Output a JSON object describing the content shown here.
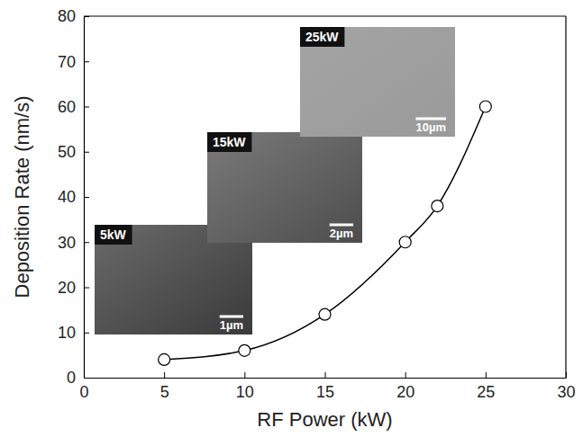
{
  "chart_data": {
    "type": "line",
    "x_label": "RF Power (kW)",
    "y_label": "Deposition Rate (nm/s)",
    "x": [
      5,
      10,
      15,
      20,
      22,
      25
    ],
    "values": [
      4,
      6,
      14,
      30,
      38,
      60
    ],
    "color": "#000000",
    "marker": "circle",
    "line_style": "solid",
    "xlim": [
      0,
      30
    ],
    "xticks": [
      0,
      5,
      10,
      15,
      20,
      25,
      30
    ],
    "ylim": [
      0,
      80
    ],
    "yticks": [
      0,
      10,
      20,
      30,
      40,
      50,
      60,
      70,
      80
    ],
    "grid": false,
    "insets": [
      {
        "label": "5kW",
        "scale_bar": "1µm"
      },
      {
        "label": "15kW",
        "scale_bar": "2µm"
      },
      {
        "label": "25kW",
        "scale_bar": "10µm"
      }
    ]
  }
}
